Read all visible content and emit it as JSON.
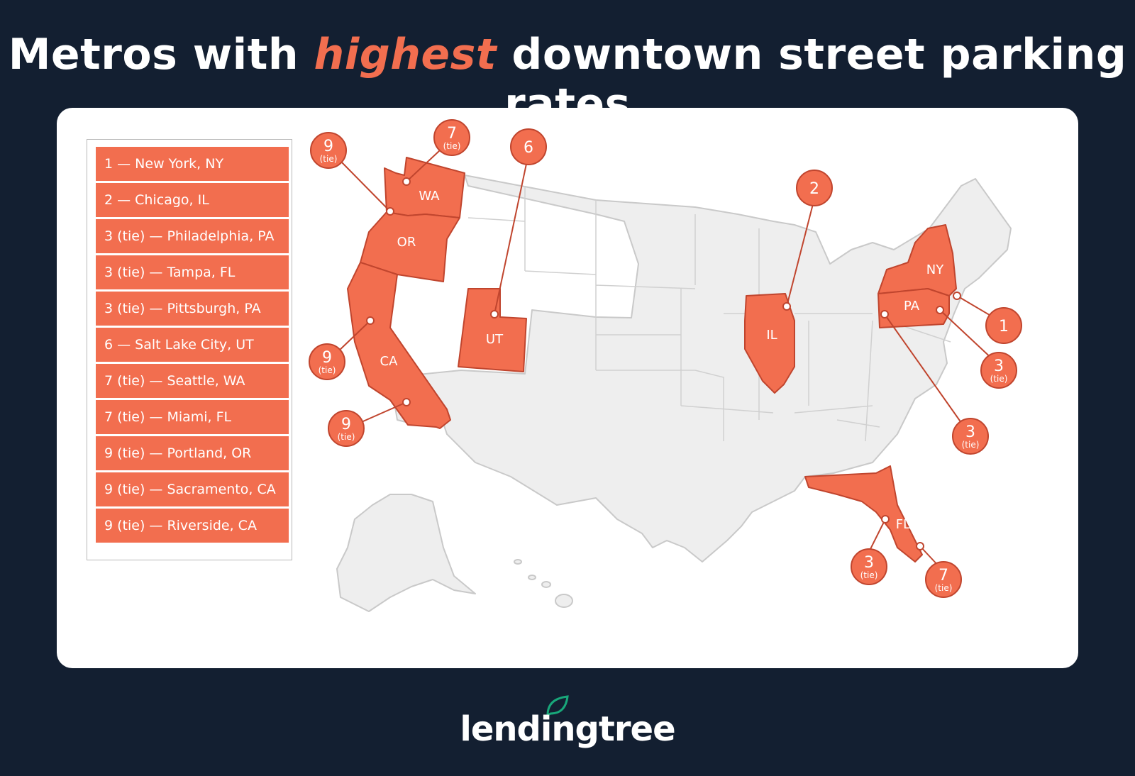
{
  "title": {
    "before": "Metros with",
    "highlight": "highest",
    "after": "downtown street parking rates"
  },
  "legend": [
    "1 — New York, NY",
    "2 — Chicago, IL",
    "3 (tie) — Philadelphia, PA",
    "3 (tie) — Tampa, FL",
    "3 (tie) — Pittsburgh, PA",
    "6 — Salt Lake City, UT",
    "7 (tie) — Seattle, WA",
    "7 (tie) — Miami, FL",
    "9 (tie) — Portland, OR",
    "9 (tie) — Sacramento, CA",
    "9 (tie) — Riverside, CA"
  ],
  "states": {
    "WA": "WA",
    "OR": "OR",
    "CA": "CA",
    "UT": "UT",
    "IL": "IL",
    "NY": "NY",
    "PA": "PA",
    "FL": "FL"
  },
  "markers": {
    "seattle": {
      "rank": "7",
      "tie": "(tie)"
    },
    "portland": {
      "rank": "9",
      "tie": "(tie)"
    },
    "sacramento": {
      "rank": "9",
      "tie": "(tie)"
    },
    "riverside": {
      "rank": "9",
      "tie": "(tie)"
    },
    "saltlake": {
      "rank": "6",
      "tie": ""
    },
    "chicago": {
      "rank": "2",
      "tie": ""
    },
    "newyork": {
      "rank": "1",
      "tie": ""
    },
    "philadelphia": {
      "rank": "3",
      "tie": "(tie)"
    },
    "pittsburgh": {
      "rank": "3",
      "tie": "(tie)"
    },
    "tampa": {
      "rank": "3",
      "tie": "(tie)"
    },
    "miami": {
      "rank": "7",
      "tie": "(tie)"
    }
  },
  "brand": "lendingtree",
  "colors": {
    "background": "#131f31",
    "accent": "#f26e4f",
    "map_fill": "#eeeeee",
    "map_stroke": "#c9c9c9"
  }
}
